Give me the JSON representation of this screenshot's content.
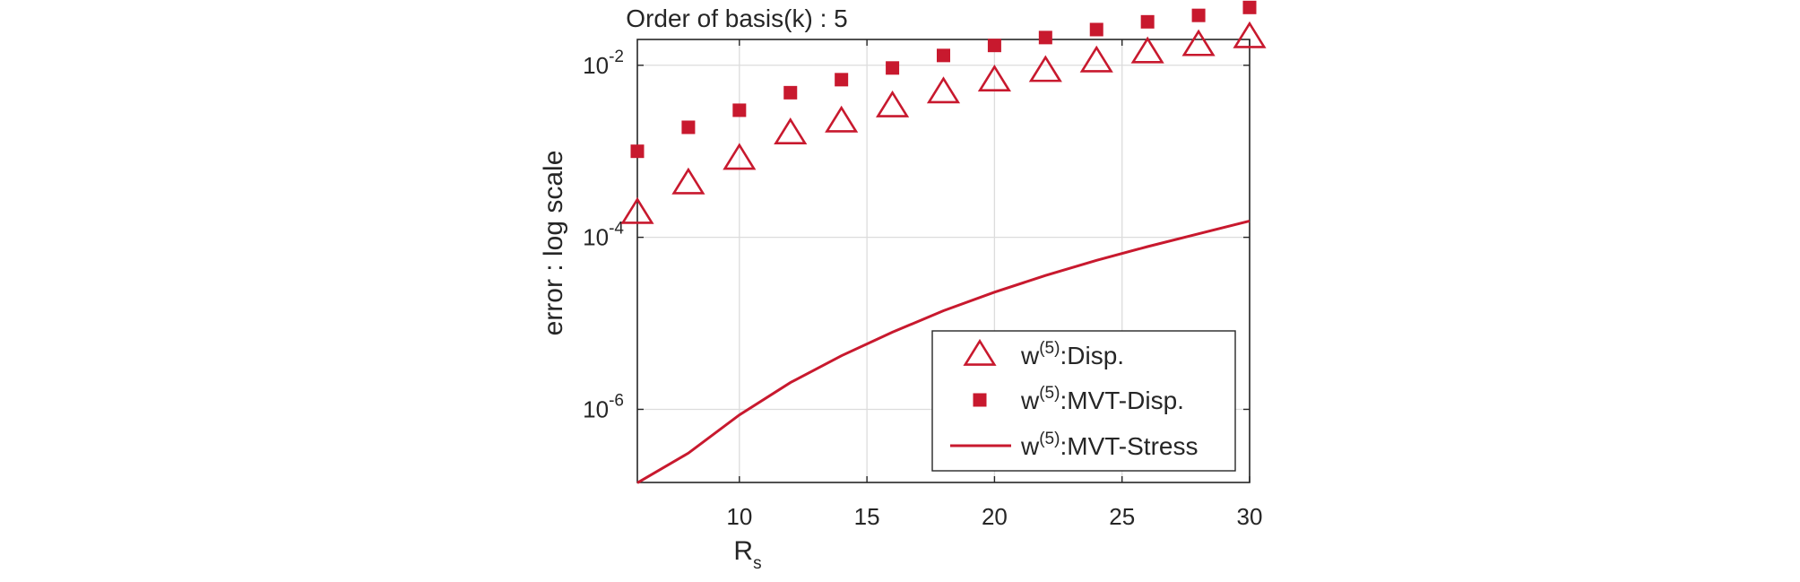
{
  "chart_data": {
    "type": "scatter",
    "title": "Order of basis(k) : 5",
    "xlabel": "R",
    "xlabel_sub": "s",
    "ylabel": "error : log scale",
    "x_scale": "linear",
    "y_scale": "log",
    "xlim": [
      6,
      30
    ],
    "ylim_log10": [
      -6.85,
      -1.7
    ],
    "x_ticks": [
      10,
      15,
      20,
      25,
      30
    ],
    "x_tick_labels": [
      "10",
      "15",
      "20",
      "25",
      "30"
    ],
    "y_ticks_log10": [
      -6,
      -4,
      -2
    ],
    "y_tick_labels": [
      {
        "base": "10",
        "exp": "-6"
      },
      {
        "base": "10",
        "exp": "-4"
      },
      {
        "base": "10",
        "exp": "-2"
      }
    ],
    "grid": true,
    "legend_position": "bottom-right",
    "color": "#c8192e",
    "series": [
      {
        "name_base": "w",
        "name_sup": "(5)",
        "name_rest": ":Disp.",
        "marker": "triangle-open",
        "x": [
          6,
          8,
          10,
          12,
          14,
          16,
          18,
          20,
          22,
          24,
          26,
          28,
          30
        ],
        "y": [
          0.00019,
          0.00042,
          0.00081,
          0.0016,
          0.0022,
          0.0033,
          0.0048,
          0.0066,
          0.0085,
          0.011,
          0.014,
          0.017,
          0.021
        ]
      },
      {
        "name_base": "w",
        "name_sup": "(5)",
        "name_rest": ":MVT-Disp.",
        "marker": "square-filled",
        "x": [
          6,
          8,
          10,
          12,
          14,
          16,
          18,
          20,
          22,
          24,
          26,
          28,
          30
        ],
        "y": [
          0.001,
          0.0019,
          0.003,
          0.0048,
          0.0068,
          0.0093,
          0.013,
          0.017,
          0.021,
          0.026,
          0.032,
          0.038,
          0.047
        ]
      },
      {
        "name_base": "w",
        "name_sup": "(5)",
        "name_rest": ":MVT-Stress",
        "marker": "line",
        "x": [
          6,
          8,
          10,
          12,
          14,
          16,
          18,
          20,
          22,
          24,
          26,
          28,
          30
        ],
        "y": [
          1.4e-07,
          3.1e-07,
          8.6e-07,
          2.05e-06,
          4.2e-06,
          7.9e-06,
          1.4e-05,
          2.3e-05,
          3.6e-05,
          5.4e-05,
          7.8e-05,
          0.00011,
          0.000155
        ]
      }
    ]
  }
}
